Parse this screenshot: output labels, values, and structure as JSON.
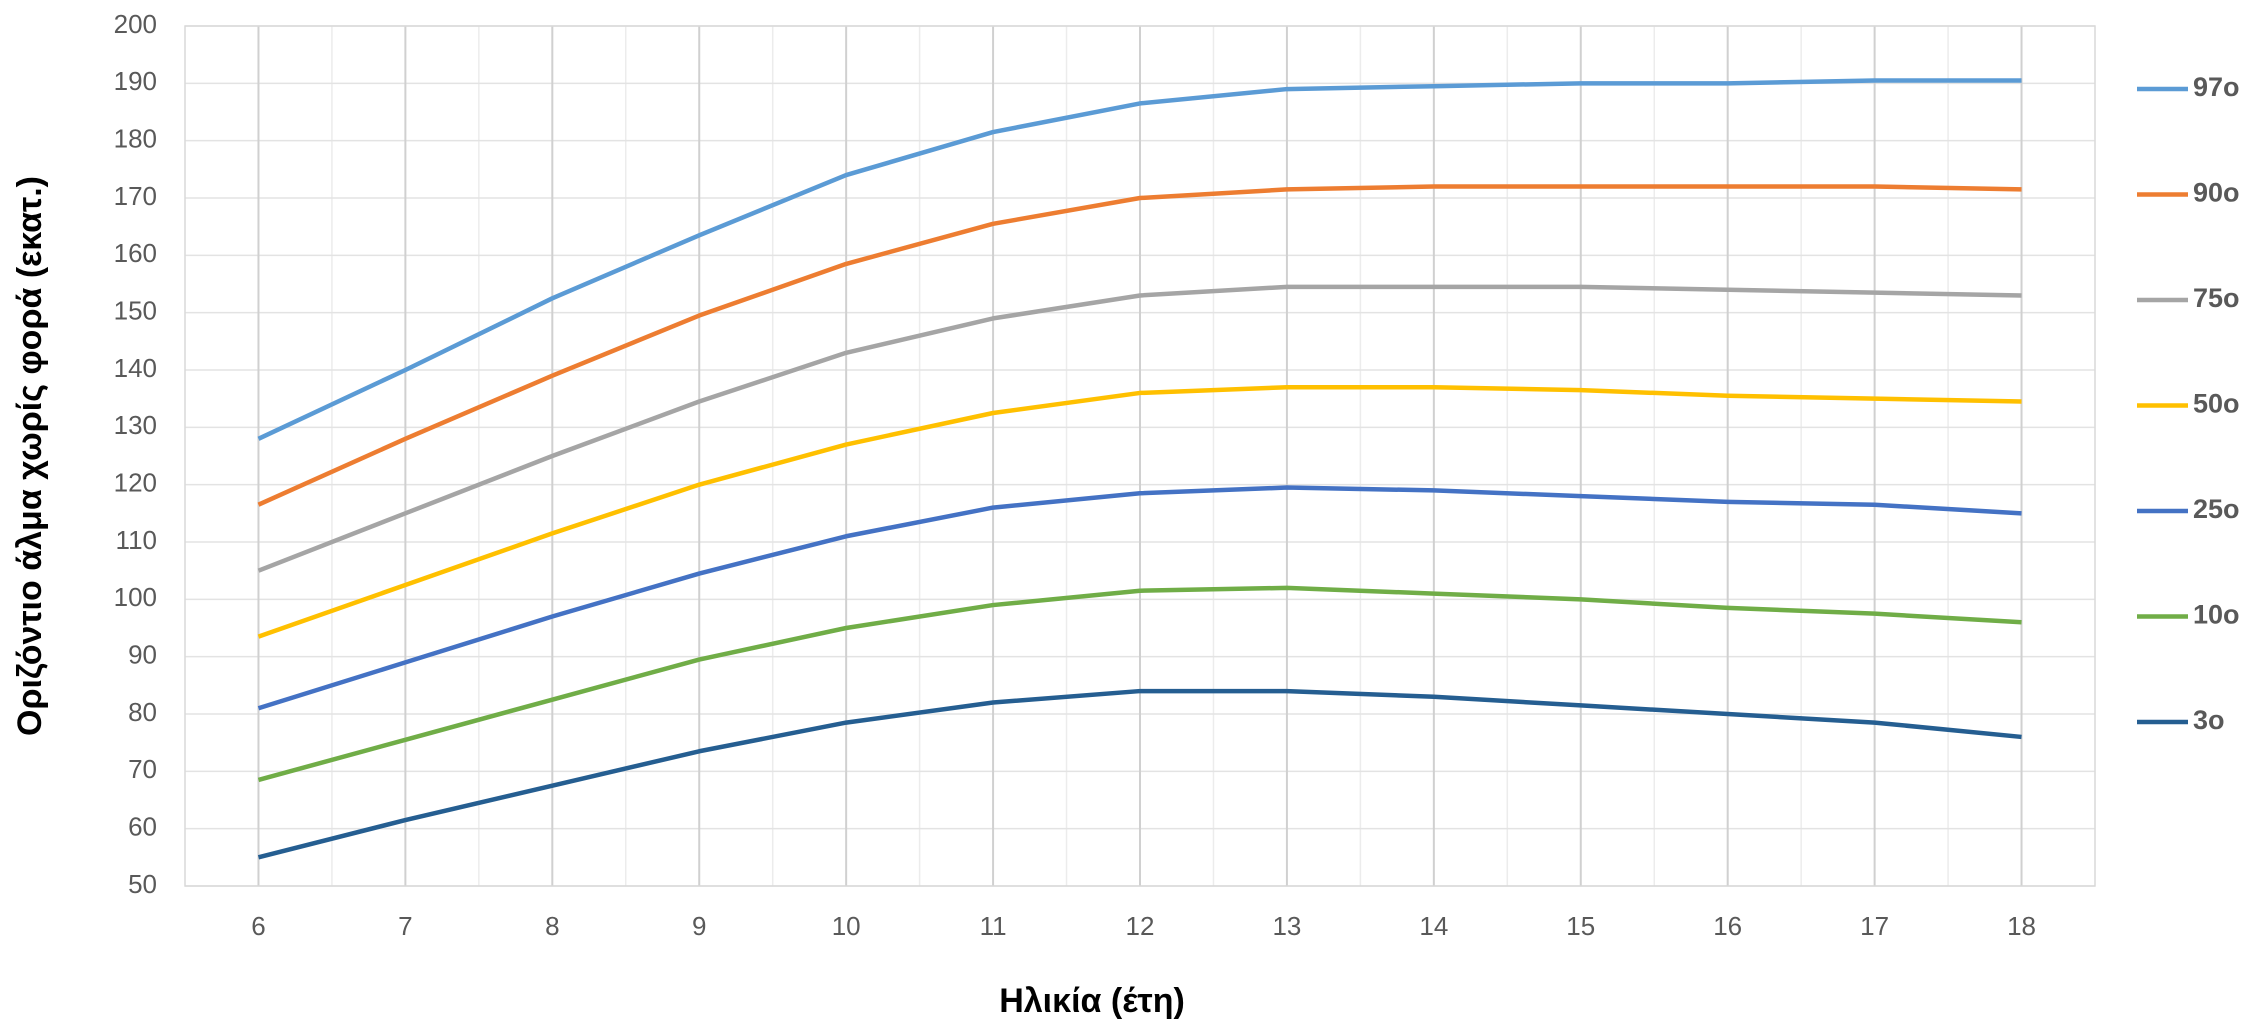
{
  "chart_data": {
    "type": "line",
    "x_label": "Ηλικία (έτη)",
    "y_label": "Οριζόντιο άλμα χωρίς φορά (εκατ.)",
    "x": [
      6,
      7,
      8,
      9,
      10,
      11,
      12,
      13,
      14,
      15,
      16,
      17,
      18
    ],
    "xlim": [
      5.5,
      18.5
    ],
    "xticks": [
      6,
      7,
      8,
      9,
      10,
      11,
      12,
      13,
      14,
      15,
      16,
      17,
      18
    ],
    "ylim": [
      50,
      200
    ],
    "yticks": [
      50,
      60,
      70,
      80,
      90,
      100,
      110,
      120,
      130,
      140,
      150,
      160,
      170,
      180,
      190,
      200
    ],
    "grid": true,
    "legend": "right",
    "series": [
      {
        "name": "97ο",
        "color": "#5b9bd5",
        "values": [
          128,
          140,
          152.5,
          163.5,
          174,
          181.5,
          186.5,
          189,
          189.5,
          190,
          190,
          190.5,
          190.5
        ]
      },
      {
        "name": "90ο",
        "color": "#ed7d31",
        "values": [
          116.5,
          128,
          139,
          149.5,
          158.5,
          165.5,
          170,
          171.5,
          172,
          172,
          172,
          172,
          171.5
        ]
      },
      {
        "name": "75ο",
        "color": "#a5a5a5",
        "values": [
          105,
          115,
          125,
          134.5,
          143,
          149,
          153,
          154.5,
          154.5,
          154.5,
          154,
          153.5,
          153
        ]
      },
      {
        "name": "50ο",
        "color": "#ffc000",
        "values": [
          93.5,
          102.5,
          111.5,
          120,
          127,
          132.5,
          136,
          137,
          137,
          136.5,
          135.5,
          135,
          134.5
        ]
      },
      {
        "name": "25ο",
        "color": "#4472c4",
        "values": [
          81,
          89,
          97,
          104.5,
          111,
          116,
          118.5,
          119.5,
          119,
          118,
          117,
          116.5,
          115
        ]
      },
      {
        "name": "10ο",
        "color": "#70ad47",
        "values": [
          68.5,
          75.5,
          82.5,
          89.5,
          95,
          99,
          101.5,
          102,
          101,
          100,
          98.5,
          97.5,
          96
        ]
      },
      {
        "name": "3ο",
        "color": "#255e91",
        "values": [
          55,
          61.5,
          67.5,
          73.5,
          78.5,
          82,
          84,
          84,
          83,
          81.5,
          80,
          78.5,
          76
        ]
      }
    ]
  }
}
